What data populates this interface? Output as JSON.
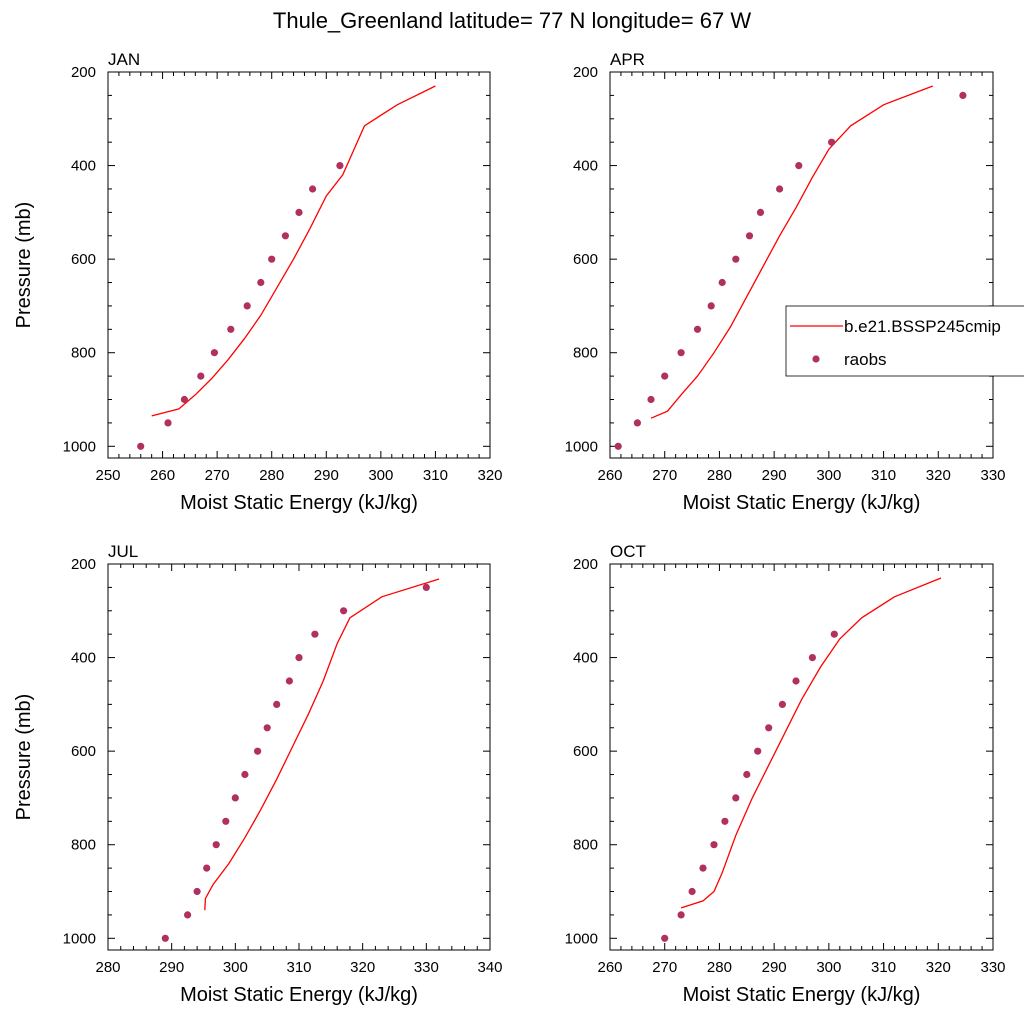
{
  "figure": {
    "title": "Thule_Greenland  latitude= 77 N longitude= 67 W"
  },
  "colors": {
    "model_line": "#ff0000",
    "raobs_marker": "#b03060",
    "axis": "#000000"
  },
  "legend": {
    "entries": [
      {
        "label": "b.e21.BSSP245cmip",
        "kind": "line"
      },
      {
        "label": "raobs",
        "kind": "marker"
      }
    ],
    "placement": "APR panel, right side"
  },
  "chart_data": [
    {
      "type": "line",
      "panel_label": "JAN",
      "xlabel": "Moist Static Energy (kJ/kg)",
      "ylabel": "Pressure (mb)",
      "xlim": [
        250,
        320
      ],
      "xticks": [
        250,
        260,
        270,
        280,
        290,
        300,
        310,
        320
      ],
      "ylim": [
        200,
        1025
      ],
      "yticks": [
        200,
        400,
        600,
        800,
        1000
      ],
      "y_inverted": true,
      "show_ylabel": true,
      "show_legend": false,
      "series": [
        {
          "name": "b.e21.BSSP245cmip",
          "style": "line",
          "x": [
            258,
            263,
            266,
            269,
            272,
            275,
            278,
            281,
            284,
            287,
            290,
            293,
            297,
            303,
            310
          ],
          "y": [
            935,
            920,
            890,
            855,
            815,
            770,
            720,
            660,
            600,
            535,
            465,
            420,
            315,
            270,
            230
          ]
        },
        {
          "name": "raobs",
          "style": "marker",
          "x": [
            256,
            261,
            264,
            267,
            269.5,
            272.5,
            275.5,
            278,
            280,
            282.5,
            285,
            287.5,
            292.5
          ],
          "y": [
            1000,
            950,
            900,
            850,
            800,
            750,
            700,
            650,
            600,
            550,
            500,
            450,
            400
          ]
        }
      ]
    },
    {
      "type": "line",
      "panel_label": "APR",
      "xlabel": "Moist Static Energy (kJ/kg)",
      "ylabel": "",
      "xlim": [
        260,
        330
      ],
      "xticks": [
        260,
        270,
        280,
        290,
        300,
        310,
        320,
        330
      ],
      "ylim": [
        200,
        1025
      ],
      "yticks": [
        200,
        400,
        600,
        800,
        1000
      ],
      "y_inverted": true,
      "show_ylabel": false,
      "show_legend": true,
      "series": [
        {
          "name": "b.e21.BSSP245cmip",
          "style": "line",
          "x": [
            267.5,
            270.5,
            273,
            276,
            279,
            282,
            285,
            288,
            291,
            294,
            297,
            300,
            304,
            310,
            319
          ],
          "y": [
            940,
            925,
            890,
            850,
            800,
            745,
            680,
            615,
            550,
            490,
            425,
            365,
            315,
            270,
            230
          ]
        },
        {
          "name": "raobs",
          "style": "marker",
          "x": [
            261.5,
            265,
            267.5,
            270,
            273,
            276,
            278.5,
            280.5,
            283,
            285.5,
            287.5,
            291,
            294.5,
            300.5,
            324.5
          ],
          "y": [
            1000,
            950,
            900,
            850,
            800,
            750,
            700,
            650,
            600,
            550,
            500,
            450,
            400,
            350,
            250
          ]
        }
      ]
    },
    {
      "type": "line",
      "panel_label": "JUL",
      "xlabel": "Moist Static Energy (kJ/kg)",
      "ylabel": "Pressure (mb)",
      "xlim": [
        280,
        340
      ],
      "xticks": [
        280,
        290,
        300,
        310,
        320,
        330,
        340
      ],
      "ylim": [
        200,
        1025
      ],
      "yticks": [
        200,
        400,
        600,
        800,
        1000
      ],
      "y_inverted": true,
      "show_ylabel": true,
      "show_legend": false,
      "series": [
        {
          "name": "b.e21.BSSP245cmip",
          "style": "line",
          "x": [
            295.2,
            295.3,
            296.5,
            299,
            301.5,
            304,
            306.5,
            309,
            311.5,
            313.8,
            316,
            318,
            323,
            332
          ],
          "y": [
            940,
            915,
            885,
            840,
            785,
            725,
            660,
            590,
            520,
            450,
            370,
            315,
            270,
            232
          ]
        },
        {
          "name": "raobs",
          "style": "marker",
          "x": [
            289,
            292.5,
            294,
            295.5,
            297,
            298.5,
            300,
            301.5,
            303.5,
            305,
            306.5,
            308.5,
            310,
            312.5,
            317,
            330
          ],
          "y": [
            1000,
            950,
            900,
            850,
            800,
            750,
            700,
            650,
            600,
            550,
            500,
            450,
            400,
            350,
            300,
            250
          ]
        }
      ]
    },
    {
      "type": "line",
      "panel_label": "OCT",
      "xlabel": "Moist Static Energy (kJ/kg)",
      "ylabel": "",
      "xlim": [
        260,
        330
      ],
      "xticks": [
        260,
        270,
        280,
        290,
        300,
        310,
        320,
        330
      ],
      "ylim": [
        200,
        1025
      ],
      "yticks": [
        200,
        400,
        600,
        800,
        1000
      ],
      "y_inverted": true,
      "show_ylabel": false,
      "show_legend": false,
      "series": [
        {
          "name": "b.e21.BSSP245cmip",
          "style": "line",
          "x": [
            273,
            277,
            279,
            280.5,
            283,
            286,
            289,
            292,
            295,
            298.5,
            302,
            306,
            312,
            320.5
          ],
          "y": [
            935,
            920,
            900,
            860,
            780,
            700,
            630,
            560,
            490,
            420,
            360,
            315,
            270,
            230
          ]
        },
        {
          "name": "raobs",
          "style": "marker",
          "x": [
            270,
            273,
            275,
            277,
            279,
            281,
            283,
            285,
            287,
            289,
            291.5,
            294,
            297,
            301
          ],
          "y": [
            1000,
            950,
            900,
            850,
            800,
            750,
            700,
            650,
            600,
            550,
            500,
            450,
            400,
            350
          ]
        }
      ]
    }
  ]
}
